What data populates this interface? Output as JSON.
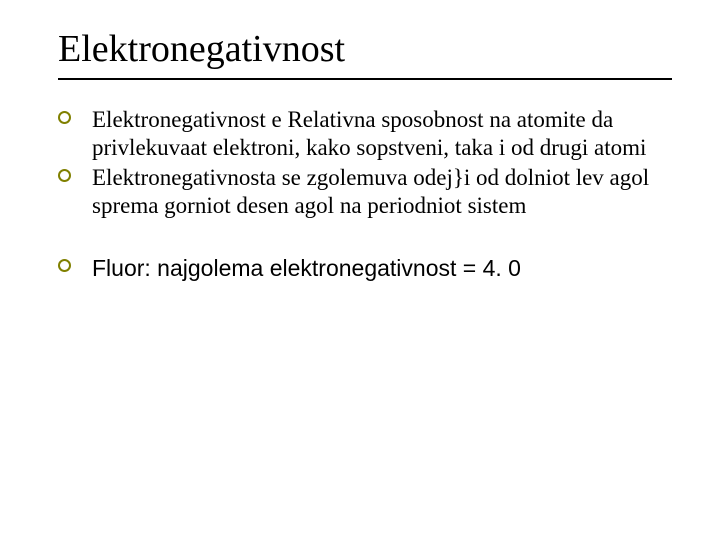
{
  "slide": {
    "title": "Elektronegativnost",
    "title_fontsize": 38,
    "rule_color": "#000000",
    "bullet_icon": {
      "shape": "hollow-circle",
      "border_color": "#808000",
      "border_width": 2,
      "diameter": 13
    },
    "body_fontsize": 23,
    "body_font_serif": "Times New Roman",
    "body_font_sans": "Arial",
    "background_color": "#ffffff",
    "text_color": "#000000",
    "bullets": [
      {
        "text": "Elektronegativnost e Relativna sposobnost na atomite da privlekuvaat elektroni, kako sopstveni, taka i od drugi atomi",
        "font": "serif",
        "gap_before": false
      },
      {
        "text": "Elektronegativnosta se zgolemuva odej}i od dolniot lev agol sprema gorniot desen agol na periodniot sistem",
        "font": "serif",
        "gap_before": false
      },
      {
        "text": "Fluor: najgolema elektronegativnost = 4. 0",
        "font": "sans",
        "gap_before": true
      }
    ]
  }
}
